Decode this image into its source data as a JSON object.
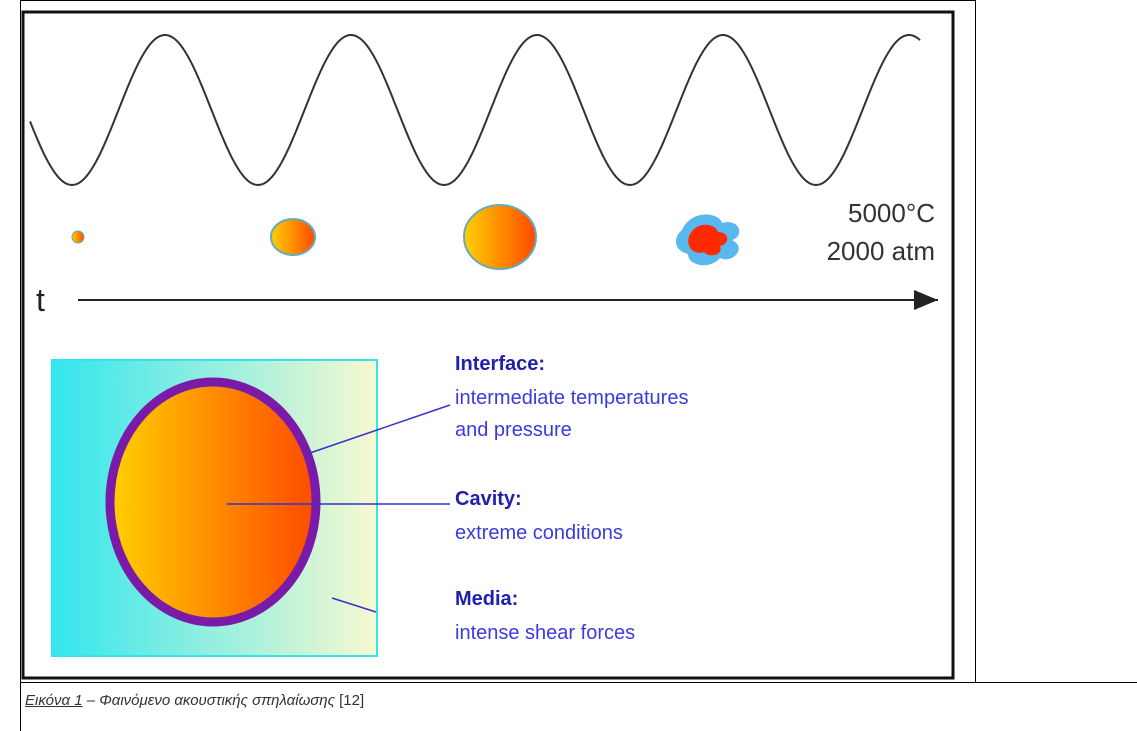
{
  "figure": {
    "temperature": "5000°C",
    "pressure": "2000 atm",
    "time_axis": "t",
    "labels": [
      {
        "title": "Interface:",
        "lines": [
          "intermediate temperatures",
          "and pressure"
        ]
      },
      {
        "title": "Cavity:",
        "lines": [
          "extreme conditions"
        ]
      },
      {
        "title": "Media:",
        "lines": [
          "intense shear forces"
        ]
      }
    ]
  },
  "caption": {
    "label": "Εικόνα 1",
    "text": "– Φαινόμενο ακουστικής σπηλαίωσης",
    "reference": "[12]"
  }
}
